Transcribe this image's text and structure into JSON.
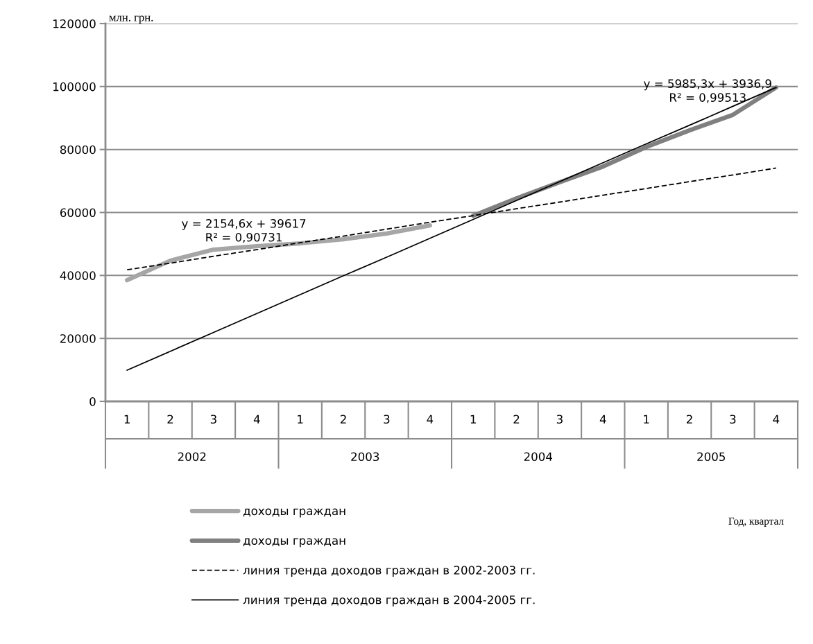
{
  "chart_data": {
    "type": "line",
    "ylabel": "млн. грн.",
    "categories": [
      "1",
      "2",
      "3",
      "4",
      "1",
      "2",
      "3",
      "4",
      "1",
      "2",
      "3",
      "4",
      "1",
      "2",
      "3",
      "4"
    ],
    "series": [
      {
        "name": "доходы граждан",
        "color": "#a6a6a6",
        "line_style": "solid",
        "values": [
          38500,
          44700,
          48200,
          49300,
          50200,
          51500,
          53300,
          55900,
          null,
          null,
          null,
          null,
          null,
          null,
          null,
          null
        ]
      },
      {
        "name": "доходы граждан",
        "color": "#808080",
        "line_style": "solid",
        "values": [
          null,
          null,
          null,
          null,
          null,
          null,
          null,
          null,
          59000,
          64500,
          69600,
          74600,
          80800,
          86100,
          91000,
          99700
        ]
      },
      {
        "name": "линия тренда доходов граждан в 2002-2003 гг.",
        "color": "#000000",
        "line_style": "dashed",
        "values": [
          41800,
          43900,
          46100,
          48200,
          50400,
          52500,
          54700,
          56900,
          59000,
          61200,
          63300,
          65500,
          67600,
          69800,
          71900,
          74100
        ]
      },
      {
        "name": "линия тренда доходов граждан в 2004-2005 гг.",
        "color": "#000000",
        "line_style": "solid",
        "values": [
          9900,
          15900,
          21900,
          27900,
          33900,
          39900,
          45800,
          51800,
          57800,
          63800,
          69800,
          75800,
          81800,
          87700,
          93700,
          99700
        ]
      }
    ],
    "ylim": [
      0,
      120000
    ],
    "yticks": [
      0,
      20000,
      40000,
      60000,
      80000,
      100000,
      120000
    ],
    "grid": "y",
    "legend": "bottom",
    "marker": "none",
    "annotations": [
      "y = 2154,6x + 39617\nR² = 0,90731",
      "y = 5985,3x + 3936,9\nR² = 0,99513",
      "2002",
      "2003",
      "2004",
      "2005",
      "Год, квартал"
    ]
  }
}
